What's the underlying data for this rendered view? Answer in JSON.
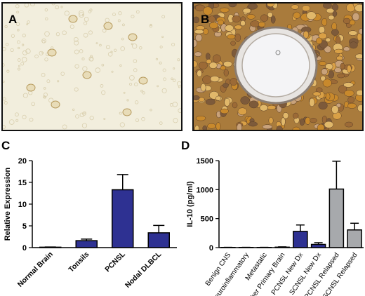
{
  "panels": {
    "a": "A",
    "b": "B",
    "c": "C",
    "d": "D"
  },
  "chart_data": [
    {
      "type": "bar",
      "panel": "C",
      "title": "",
      "xlabel": "",
      "ylabel": "Relative Expression",
      "ylim": [
        0,
        20
      ],
      "yticks": [
        "0",
        "5",
        "10",
        "15",
        "20"
      ],
      "categories": [
        "Normal Brain",
        "Tonsils",
        "PCNSL",
        "Nodal DLBCL"
      ],
      "values": [
        0.1,
        1.6,
        13.3,
        3.4
      ],
      "errors": [
        0.05,
        0.35,
        3.5,
        1.7
      ],
      "colors": [
        "#2e3192",
        "#2e3192",
        "#2e3192",
        "#2e3192"
      ],
      "grid": false
    },
    {
      "type": "bar",
      "panel": "D",
      "title": "",
      "xlabel": "",
      "ylabel": "IL-10 (pg/ml)",
      "ylim": [
        0,
        1500
      ],
      "yticks": [
        "0",
        "500",
        "1000",
        "1500"
      ],
      "categories": [
        "Benign CNS",
        "Neuroinflammatory",
        "Metastatic",
        "Other Primary Brain",
        "PCNSL New Dx",
        "SCNSL New Dx",
        "PCNSL Relapsed",
        "SCNSL Relapsed"
      ],
      "values": [
        3,
        3,
        3,
        8,
        280,
        55,
        1010,
        305
      ],
      "errors": [
        2,
        2,
        2,
        5,
        110,
        30,
        480,
        115
      ],
      "colors": [
        "#2e3192",
        "#2e3192",
        "#2e3192",
        "#2e3192",
        "#2e3192",
        "#2e3192",
        "#a7a9ac",
        "#a7a9ac"
      ],
      "grid": false
    }
  ]
}
